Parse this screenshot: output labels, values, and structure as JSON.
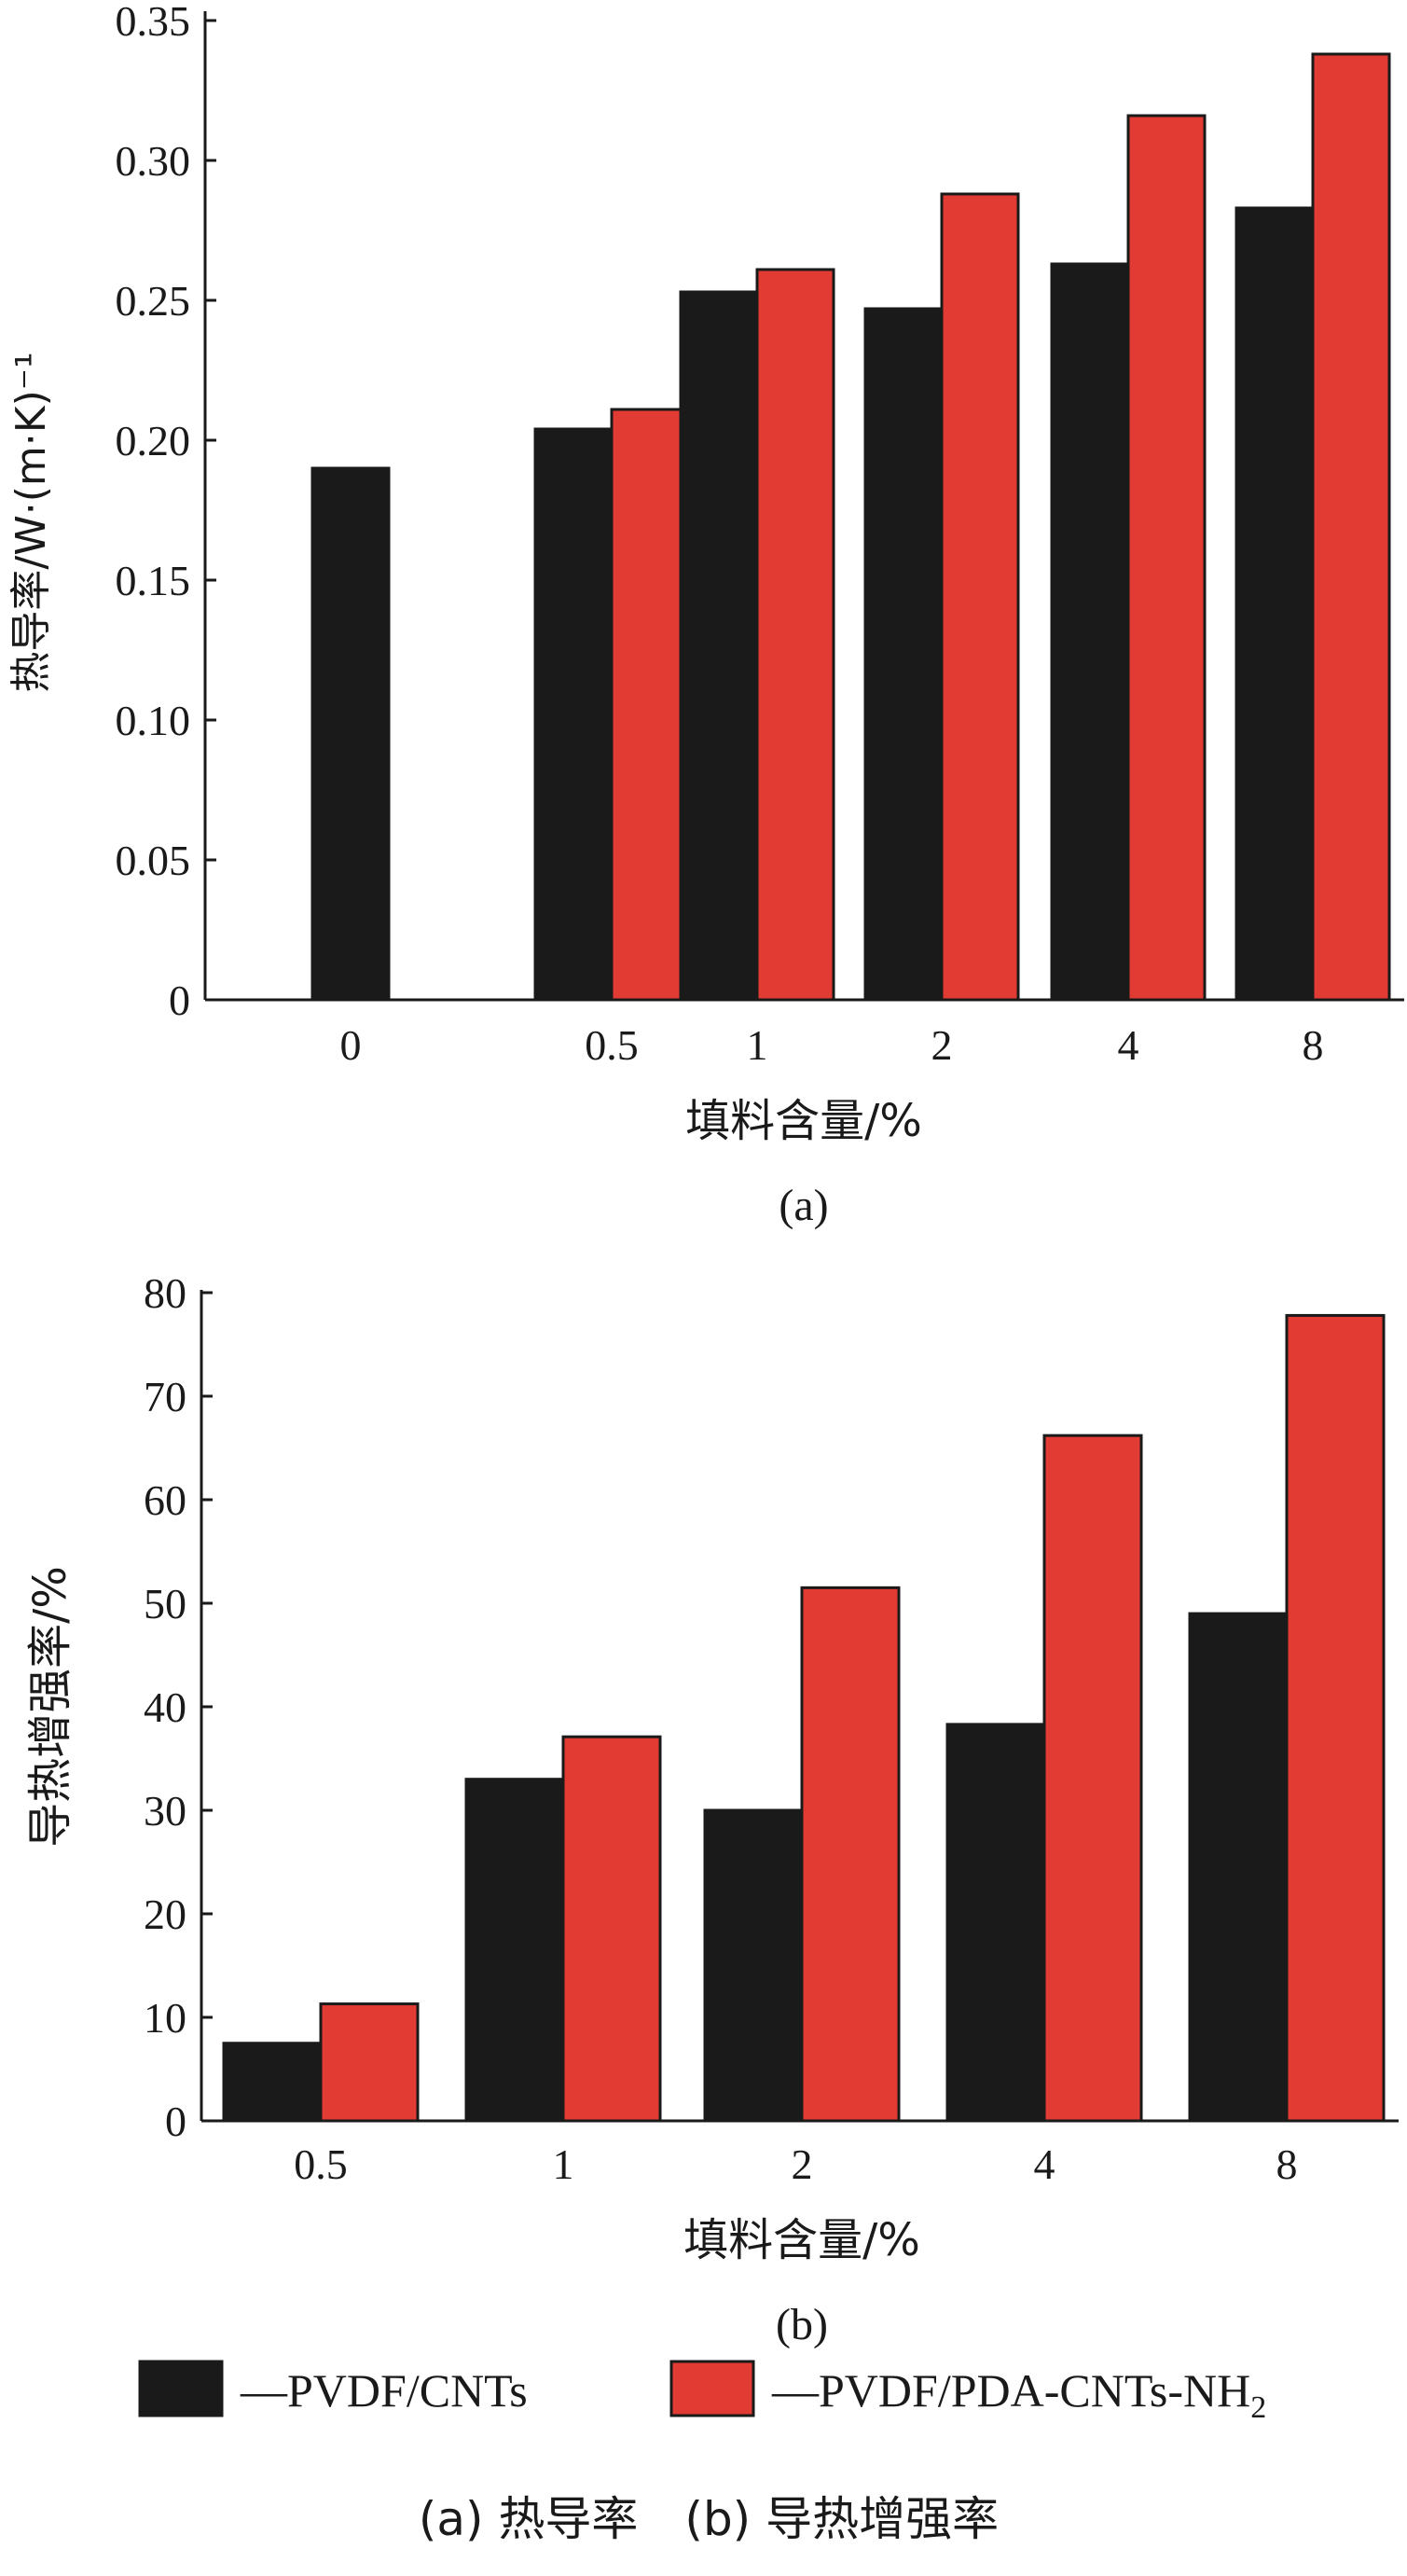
{
  "colors": {
    "series1": "#1a1a1a",
    "series2": "#e23b33",
    "axis": "#1a1a1a"
  },
  "chart_data": [
    {
      "type": "bar",
      "panel_label": "(a)",
      "xlabel": "填料含量/%",
      "ylabel": "热导率/W·(m·K)⁻¹",
      "ylim": [
        0,
        0.35
      ],
      "yticks": [
        "0",
        "0.05",
        "0.10",
        "0.15",
        "0.20",
        "0.25",
        "0.30",
        "0.35"
      ],
      "categories": [
        "0",
        "0.5",
        "1",
        "2",
        "4",
        "8"
      ],
      "series": [
        {
          "name": "PVDF/CNTs",
          "values": [
            0.19,
            0.204,
            0.253,
            0.247,
            0.263,
            0.283
          ]
        },
        {
          "name": "PVDF/PDA-CNTs-NH2",
          "values": [
            null,
            0.211,
            0.261,
            0.288,
            0.316,
            0.338
          ]
        }
      ]
    },
    {
      "type": "bar",
      "panel_label": "(b)",
      "xlabel": "填料含量/%",
      "ylabel": "导热增强率/%",
      "ylim": [
        0,
        80
      ],
      "yticks": [
        "0",
        "10",
        "20",
        "30",
        "40",
        "50",
        "60",
        "70",
        "80"
      ],
      "categories": [
        "0.5",
        "1",
        "2",
        "4",
        "8"
      ],
      "series": [
        {
          "name": "PVDF/CNTs",
          "values": [
            7.5,
            33,
            30,
            38.3,
            49
          ]
        },
        {
          "name": "PVDF/PDA-CNTs-NH2",
          "values": [
            11.3,
            37.1,
            51.5,
            66.2,
            77.8
          ]
        }
      ]
    }
  ],
  "legend": {
    "item1": "—PVDF/CNTs",
    "item2_main": "—PVDF/PDA-CNTs-NH",
    "item2_sub": "2"
  },
  "caption": "(a) 热导率　(b) 导热增强率"
}
